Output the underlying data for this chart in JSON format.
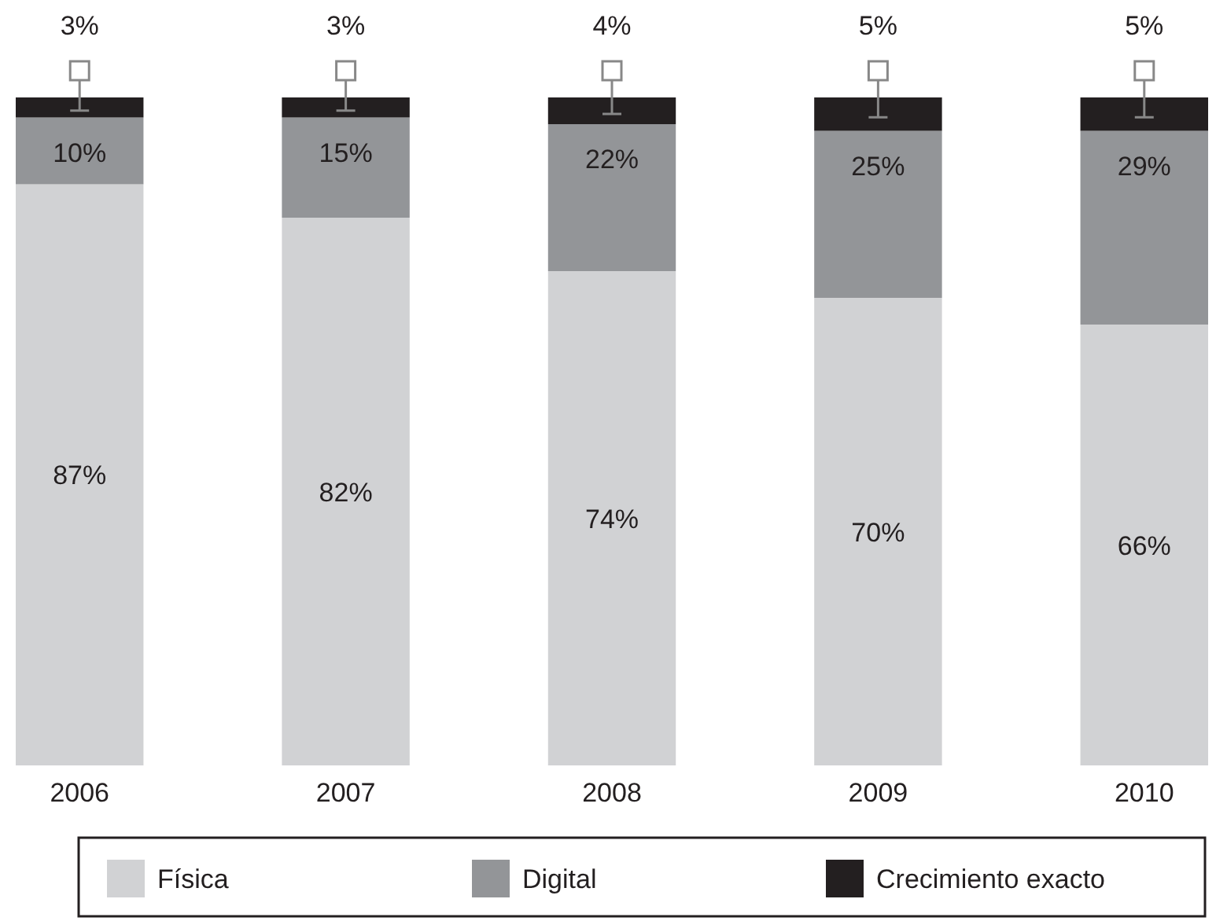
{
  "chart_data": {
    "type": "bar",
    "stacked": true,
    "legend": "bottom",
    "categories": [
      "2006",
      "2007",
      "2008",
      "2009",
      "2010"
    ],
    "series": [
      {
        "name": "Física",
        "color": "#d1d2d4",
        "values": [
          87,
          82,
          74,
          70,
          66
        ],
        "value_labels": [
          "87%",
          "82%",
          "74%",
          "70%",
          "66%"
        ]
      },
      {
        "name": "Digital",
        "color": "#939598",
        "values": [
          10,
          15,
          22,
          25,
          29
        ],
        "value_labels": [
          "10%",
          "15%",
          "22%",
          "25%",
          "29%"
        ]
      },
      {
        "name": "Crecimiento exacto",
        "color": "#231f20",
        "values": [
          3,
          3,
          4,
          5,
          5
        ],
        "value_labels": [
          "3%",
          "3%",
          "4%",
          "5%",
          "5%"
        ]
      }
    ]
  }
}
